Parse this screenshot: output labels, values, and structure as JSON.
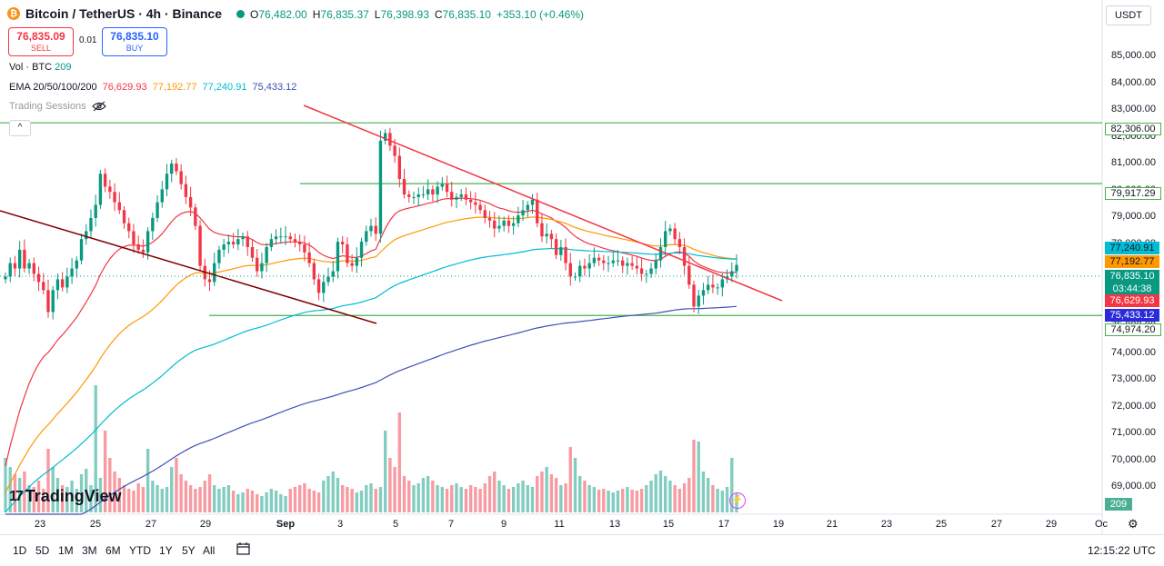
{
  "header": {
    "coin_glyph": "₿",
    "title": "Bitcoin / TetherUS · 4h · Binance",
    "o_label": "O",
    "o": "76,482.00",
    "h_label": "H",
    "h": "76,835.37",
    "l_label": "L",
    "l": "76,398.93",
    "c_label": "C",
    "c": "76,835.10",
    "change": "+353.10 (+0.46%)"
  },
  "trade": {
    "sell_price": "76,835.09",
    "sell_label": "SELL",
    "spread": "0.01",
    "buy_price": "76,835.10",
    "buy_label": "BUY"
  },
  "indicators": {
    "vol_label": "Vol · BTC",
    "vol_value": "209",
    "ema_label": "EMA 20/50/100/200",
    "ema20": "76,629.93",
    "ema50": "77,192.77",
    "ema100": "77,240.91",
    "ema200": "75,433.12",
    "sessions_label": "Trading Sessions",
    "collapse_glyph": "^"
  },
  "currency": "USDT",
  "colors": {
    "up": "#089981",
    "down": "#f23645",
    "ema20": "#f23645",
    "ema50": "#ff9800",
    "ema100": "#00bcd4",
    "ema200": "#3f51b5",
    "horizontal_levels": "#4caf50",
    "downtrend_line": "#f23645",
    "old_trend_line": "#800000"
  },
  "axis": {
    "y_ticks": [
      "85,000.00",
      "84,000.00",
      "83,000.00",
      "82,000.00",
      "81,000.00",
      "80,000.00",
      "79,000.00",
      "78,000.00",
      "75,000.00",
      "74,000.00",
      "73,000.00",
      "72,000.00",
      "71,000.00",
      "70,000.00",
      "69,000.00"
    ],
    "x_ticks": [
      "23",
      "25",
      "27",
      "29",
      "Sep",
      "3",
      "5",
      "7",
      "9",
      "11",
      "13",
      "15",
      "17",
      "19",
      "21",
      "23",
      "25",
      "27",
      "29",
      "Oc"
    ]
  },
  "price_labels": {
    "level_82306": "82,306.00",
    "level_79917": "79,917.29",
    "ema100": "77,240.91",
    "ema50": "77,192.77",
    "last": "76,835.10",
    "countdown": "03:44:38",
    "ema20": "76,629.93",
    "ema200": "75,433.12",
    "level_74974": "74,974.20",
    "volume": "209"
  },
  "bottom": {
    "ranges": [
      "1D",
      "5D",
      "1M",
      "3M",
      "6M",
      "YTD",
      "1Y",
      "5Y",
      "All"
    ],
    "clock": "12:15:22 UTC",
    "logo": "TradingView",
    "logo_mark": "17"
  },
  "chart_data": {
    "type": "candlestick",
    "interval": "4h",
    "symbol": "BTCUSDT",
    "ylim": [
      68300,
      85900
    ],
    "y_scale": "log",
    "horizontal_levels": [
      82306.0,
      79917.29,
      74974.2
    ],
    "trendlines": [
      {
        "name": "downtrend",
        "from": {
          "x": "2024-09-03 16:00",
          "y": 82900
        },
        "to": {
          "x": "2024-09-18 12:00",
          "y": 75900
        }
      },
      {
        "name": "old downtrend",
        "from": {
          "x": "2024-08-21 12:00",
          "y": 78500
        },
        "to": {
          "x": "2024-09-04 04:00",
          "y": 74050
        }
      }
    ],
    "series": [
      {
        "name": "EMA 20",
        "last": 76629.93
      },
      {
        "name": "EMA 50",
        "last": 77192.77
      },
      {
        "name": "EMA 100",
        "last": 77240.91
      },
      {
        "name": "EMA 200",
        "last": 75433.12
      }
    ],
    "candles_close": [
      76400,
      76900,
      76700,
      77400,
      76700,
      76900,
      76500,
      76200,
      75900,
      75100,
      75900,
      76300,
      76000,
      76400,
      76700,
      77000,
      77800,
      78100,
      78600,
      79100,
      80300,
      79800,
      79600,
      79200,
      78900,
      78400,
      78100,
      77600,
      77400,
      77300,
      78100,
      78600,
      79200,
      79700,
      80300,
      80700,
      80400,
      79900,
      79400,
      79000,
      78300,
      76800,
      76300,
      76200,
      76900,
      77400,
      77600,
      77700,
      77600,
      77800,
      77900,
      77500,
      77100,
      76600,
      76900,
      77500,
      77800,
      77900,
      77900,
      77900,
      77800,
      77700,
      77600,
      77300,
      76900,
      76300,
      75800,
      76200,
      76400,
      76600,
      77700,
      77600,
      76900,
      76800,
      77100,
      77700,
      78100,
      78300,
      78000,
      81600,
      81900,
      81400,
      81000,
      80100,
      79500,
      79400,
      79400,
      79500,
      79500,
      79700,
      79500,
      79800,
      79900,
      79600,
      79300,
      79400,
      79500,
      79300,
      79200,
      79100,
      78900,
      78600,
      78500,
      78200,
      78300,
      78500,
      78300,
      78400,
      78700,
      78900,
      79100,
      79300,
      78400,
      77900,
      78000,
      77800,
      77200,
      77500,
      76900,
      76400,
      76400,
      76800,
      76700,
      76900,
      77100,
      77000,
      76900,
      76900,
      77000,
      77000,
      76800,
      76900,
      76800,
      76700,
      76500,
      76500,
      76700,
      77000,
      77500,
      78100,
      78200,
      77800,
      77500,
      76800,
      76100,
      75300,
      75700,
      75900,
      76100,
      76000,
      76000,
      76300,
      76400,
      76600,
      76835.1
    ],
    "candles_open": [
      76300,
      76400,
      76900,
      76700,
      77400,
      76700,
      76900,
      76500,
      76200,
      75900,
      75100,
      75900,
      76300,
      76000,
      76400,
      76700,
      77000,
      77800,
      78100,
      78600,
      79100,
      80300,
      79800,
      79600,
      79200,
      78900,
      78400,
      78100,
      77600,
      77400,
      77300,
      78100,
      78600,
      79200,
      79700,
      80300,
      80700,
      80400,
      79900,
      79400,
      79000,
      78300,
      76800,
      76300,
      76200,
      76900,
      77400,
      77600,
      77700,
      77600,
      77800,
      77900,
      77500,
      77100,
      76600,
      76900,
      77500,
      77800,
      77900,
      77900,
      77900,
      77800,
      77700,
      77600,
      77300,
      76900,
      76300,
      75800,
      76200,
      76400,
      76600,
      77700,
      77600,
      76900,
      76800,
      77100,
      77700,
      78100,
      78300,
      78000,
      81600,
      81900,
      81400,
      81000,
      80100,
      79500,
      79400,
      79400,
      79500,
      79500,
      79700,
      79500,
      79800,
      79900,
      79600,
      79300,
      79400,
      79500,
      79300,
      79200,
      79100,
      78900,
      78600,
      78500,
      78200,
      78300,
      78500,
      78300,
      78400,
      78700,
      78900,
      79100,
      79300,
      78400,
      77900,
      78000,
      77800,
      77200,
      77500,
      76900,
      76400,
      76400,
      76800,
      76700,
      76900,
      77100,
      77000,
      76900,
      76900,
      77000,
      77000,
      76800,
      76900,
      76800,
      76700,
      76500,
      76500,
      76700,
      77000,
      77500,
      78100,
      78200,
      77800,
      77500,
      76800,
      76100,
      75300,
      75700,
      75900,
      76100,
      76000,
      76000,
      76300,
      76400,
      76600,
      76482
    ],
    "volumes": [
      600,
      500,
      420,
      380,
      450,
      300,
      280,
      350,
      260,
      700,
      500,
      380,
      300,
      280,
      350,
      260,
      420,
      480,
      300,
      1400,
      380,
      900,
      600,
      450,
      380,
      300,
      260,
      240,
      320,
      280,
      700,
      350,
      300,
      260,
      280,
      500,
      600,
      420,
      350,
      300,
      260,
      280,
      350,
      420,
      300,
      260,
      280,
      300,
      240,
      200,
      220,
      260,
      240,
      200,
      180,
      220,
      260,
      240,
      200,
      180,
      260,
      280,
      300,
      320,
      260,
      240,
      220,
      350,
      400,
      450,
      380,
      300,
      280,
      260,
      220,
      240,
      300,
      320,
      260,
      280,
      900,
      600,
      500,
      1100,
      400,
      350,
      300,
      320,
      380,
      400,
      350,
      300,
      280,
      260,
      300,
      320,
      280,
      260,
      300,
      280,
      260,
      320,
      400,
      450,
      350,
      300,
      260,
      280,
      320,
      350,
      300,
      280,
      400,
      450,
      500,
      420,
      380,
      300,
      320,
      720,
      600,
      400,
      350,
      300,
      280,
      250,
      260,
      240,
      220,
      240,
      260,
      280,
      250,
      240,
      260,
      300,
      350,
      420,
      460,
      400,
      350,
      300,
      260,
      320,
      380,
      800,
      780,
      450,
      380,
      300,
      260,
      240,
      280,
      600,
      209
    ]
  }
}
